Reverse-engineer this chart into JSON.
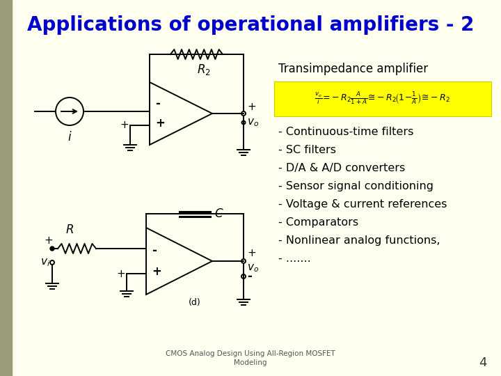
{
  "title": "Applications of operational amplifiers - 2",
  "title_color": "#0000CC",
  "title_fontsize": 20,
  "bg_color": "#FFFFF0",
  "left_bar_color": "#9B9B7A",
  "footer_text": "CMOS Analog Design Using All-Region MOSFET\nModeling",
  "page_number": "4",
  "transimpedance_label": "Transimpedance amplifier",
  "formula_bg": "#FFFF00",
  "bullet_items": [
    "- Continuous-time filters",
    "- SC filters",
    "- D/A & A/D converters",
    "- Sensor signal conditioning",
    "- Voltage & current references",
    "- Comparators",
    "- Nonlinear analog functions,",
    "- ......."
  ],
  "line_color": "#000000",
  "lw": 1.4
}
